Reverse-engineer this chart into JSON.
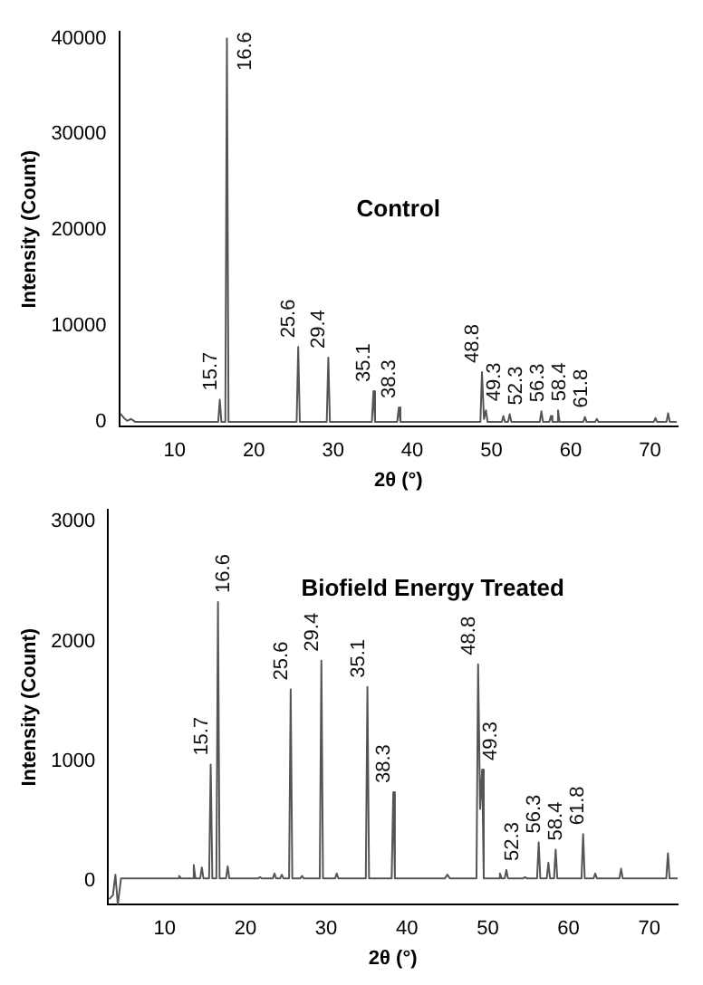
{
  "chart_data": [
    {
      "type": "line",
      "title": "Control",
      "xlabel": "2θ (°)",
      "ylabel": "Intensity (Count)",
      "xlim": [
        3,
        73.5
      ],
      "xticks": [
        10,
        20,
        30,
        40,
        50,
        60,
        70
      ],
      "ylim": [
        -500,
        40700
      ],
      "yticks": [
        0,
        10000,
        20000,
        30000,
        40000
      ],
      "grid": false,
      "legend": false,
      "marker": "none",
      "line_style": "solid",
      "series": [
        {
          "color": "#555555",
          "x": [
            3.2,
            3.6,
            4.0,
            4.5,
            5,
            15.5,
            15.7,
            15.9,
            16.4,
            16.6,
            16.8,
            25.4,
            25.6,
            25.8,
            29.2,
            29.4,
            29.6,
            34.9,
            35.1,
            35.3,
            38.1,
            38.3,
            38.5,
            48.6,
            48.8,
            49.05,
            49.3,
            49.5,
            51.3,
            51.5,
            51.7,
            52.1,
            52.3,
            52.5,
            56.1,
            56.3,
            56.5,
            57.3,
            57.5,
            57.7,
            58.2,
            58.4,
            58.6,
            61.6,
            61.8,
            62,
            63.1,
            63.3,
            63.5,
            70.5,
            70.7,
            70.9,
            72.1,
            72.3,
            72.5,
            73.3
          ],
          "values": [
            800,
            400,
            100,
            300,
            0,
            0,
            2300,
            0,
            0,
            40000,
            0,
            0,
            7800,
            0,
            0,
            6700,
            0,
            0,
            3200,
            0,
            0,
            1500,
            0,
            0,
            5200,
            300,
            1200,
            0,
            0,
            600,
            0,
            0,
            800,
            0,
            0,
            1100,
            0,
            0,
            600,
            0,
            0,
            1200,
            0,
            0,
            500,
            0,
            0,
            300,
            0,
            0,
            400,
            0,
            0,
            900,
            0,
            0
          ]
        }
      ],
      "annotations": [
        {
          "text": "15.7",
          "x": 15.7,
          "y": 2300
        },
        {
          "text": "16.6",
          "x": 16.6,
          "y": 40000
        },
        {
          "text": "25.6",
          "x": 25.6,
          "y": 7800
        },
        {
          "text": "29.4",
          "x": 29.4,
          "y": 6700
        },
        {
          "text": "35.1",
          "x": 35.1,
          "y": 3200
        },
        {
          "text": "38.3",
          "x": 38.3,
          "y": 1500
        },
        {
          "text": "48.8",
          "x": 48.8,
          "y": 5200
        },
        {
          "text": "49.3",
          "x": 49.3,
          "y": 1200
        },
        {
          "text": "52.3",
          "x": 52.3,
          "y": 800
        },
        {
          "text": "56.3",
          "x": 56.3,
          "y": 1100
        },
        {
          "text": "58.4",
          "x": 58.4,
          "y": 1200
        },
        {
          "text": "61.8",
          "x": 61.8,
          "y": 500
        }
      ]
    },
    {
      "type": "line",
      "title": "Biofield Energy Treated",
      "xlabel": "2θ (°)",
      "ylabel": "Intensity (Count)",
      "xlim": [
        3,
        73.5
      ],
      "xticks": [
        10,
        20,
        30,
        40,
        50,
        60,
        70
      ],
      "ylim": [
        -200,
        3100
      ],
      "yticks": [
        0,
        1000,
        2000,
        3000
      ],
      "grid": false,
      "legend": false,
      "marker": "none",
      "line_style": "solid",
      "series": [
        {
          "color": "#555555",
          "x": [
            3.2,
            3.6,
            3.9,
            4.2,
            4.6,
            5,
            11.6,
            11.8,
            12,
            13.4,
            13.6,
            13.8,
            14.4,
            14.6,
            14.8,
            15.5,
            15.7,
            15.9,
            16.4,
            16.6,
            16.8,
            17.6,
            17.8,
            18,
            21.6,
            21.8,
            22,
            23.4,
            23.6,
            23.8,
            24.3,
            24.5,
            24.7,
            25.4,
            25.6,
            25.8,
            26.8,
            27,
            27.2,
            29.2,
            29.4,
            29.6,
            31.1,
            31.3,
            31.5,
            34.9,
            35.1,
            35.3,
            38.1,
            38.3,
            38.5,
            44.7,
            45,
            45.3,
            48.6,
            48.8,
            49.05,
            49.3,
            49.5,
            51.3,
            51.5,
            51.7,
            52.1,
            52.3,
            52.5,
            54.4,
            54.6,
            54.8,
            56.1,
            56.3,
            56.5,
            57.3,
            57.5,
            57.7,
            58.2,
            58.4,
            58.6,
            61.6,
            61.8,
            62,
            63.1,
            63.3,
            63.5,
            66.3,
            66.5,
            66.7,
            72.1,
            72.3,
            72.5,
            73.5
          ],
          "values": [
            -150,
            -120,
            50,
            -200,
            20,
            20,
            20,
            40,
            20,
            20,
            130,
            20,
            20,
            110,
            20,
            20,
            970,
            20,
            20,
            2330,
            20,
            20,
            120,
            20,
            20,
            30,
            20,
            20,
            60,
            20,
            20,
            50,
            20,
            20,
            1600,
            20,
            20,
            40,
            20,
            20,
            1840,
            20,
            20,
            60,
            20,
            20,
            1620,
            20,
            20,
            740,
            20,
            20,
            50,
            20,
            20,
            1810,
            600,
            930,
            20,
            20,
            60,
            20,
            20,
            90,
            20,
            20,
            30,
            20,
            20,
            320,
            20,
            20,
            150,
            20,
            20,
            260,
            20,
            20,
            390,
            20,
            20,
            60,
            20,
            20,
            100,
            20,
            20,
            230,
            20,
            20
          ]
        }
      ],
      "annotations": [
        {
          "text": "15.7",
          "x": 15.7,
          "y": 970
        },
        {
          "text": "16.6",
          "x": 16.6,
          "y": 2330
        },
        {
          "text": "25.6",
          "x": 25.6,
          "y": 1600
        },
        {
          "text": "29.4",
          "x": 29.4,
          "y": 1840
        },
        {
          "text": "35.1",
          "x": 35.1,
          "y": 1620
        },
        {
          "text": "38.3",
          "x": 38.3,
          "y": 740
        },
        {
          "text": "48.8",
          "x": 48.8,
          "y": 1810
        },
        {
          "text": "49.3",
          "x": 49.3,
          "y": 930
        },
        {
          "text": "52.3",
          "x": 52.3,
          "y": 90
        },
        {
          "text": "56.3",
          "x": 56.3,
          "y": 320
        },
        {
          "text": "58.4",
          "x": 58.4,
          "y": 260
        },
        {
          "text": "61.8",
          "x": 61.8,
          "y": 390
        }
      ]
    }
  ]
}
